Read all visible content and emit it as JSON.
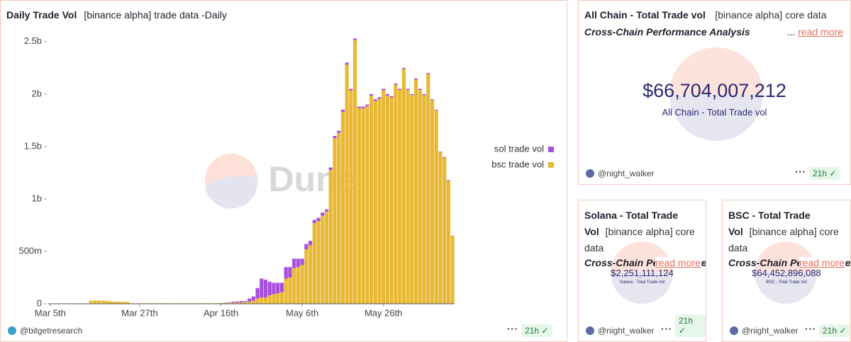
{
  "chart_data": {
    "type": "bar",
    "stacked": true,
    "title": "Daily Trade Vol",
    "subtitle": "[binance alpha] trade data -Daily",
    "watermark": "Dune",
    "categories": [
      "Mar 5th",
      null,
      null,
      null,
      null,
      null,
      null,
      null,
      null,
      null,
      null,
      null,
      null,
      null,
      null,
      null,
      null,
      null,
      null,
      null,
      null,
      null,
      "Mar 27th",
      null,
      null,
      null,
      null,
      null,
      null,
      null,
      null,
      null,
      null,
      null,
      null,
      null,
      null,
      null,
      null,
      null,
      null,
      null,
      "Apr 16th",
      null,
      null,
      null,
      null,
      null,
      null,
      null,
      null,
      null,
      null,
      null,
      null,
      null,
      null,
      null,
      null,
      null,
      null,
      null,
      "May 6th",
      null,
      null,
      null,
      null,
      null,
      null,
      null,
      null,
      null,
      null,
      null,
      null,
      null,
      null,
      null,
      null,
      null,
      null,
      null,
      "May 26th",
      null,
      null,
      null,
      null,
      null,
      null,
      null,
      null,
      null,
      null,
      null,
      null,
      null,
      null,
      null,
      null,
      null
    ],
    "series": [
      {
        "name": "sol trade vol",
        "color": "#a64ee0",
        "values": [
          0,
          0,
          0,
          0,
          0,
          0,
          0,
          0,
          0,
          0,
          0,
          0,
          0,
          0,
          0,
          0,
          0,
          0,
          0,
          0,
          0,
          0,
          0,
          0,
          0,
          0,
          0,
          0,
          0,
          0,
          0,
          0,
          0,
          0,
          0,
          0,
          0,
          0,
          0,
          0,
          0,
          0,
          0,
          3000000,
          5000000,
          10000000,
          10000000,
          12000000,
          10000000,
          30000000,
          40000000,
          100000000,
          180000000,
          170000000,
          130000000,
          110000000,
          100000000,
          90000000,
          110000000,
          100000000,
          90000000,
          80000000,
          60000000,
          50000000,
          40000000,
          30000000,
          30000000,
          30000000,
          20000000,
          25000000,
          20000000,
          20000000,
          20000000,
          20000000,
          15000000,
          15000000,
          15000000,
          15000000,
          15000000,
          15000000,
          15000000,
          15000000,
          15000000,
          15000000,
          12000000,
          10000000,
          10000000,
          10000000,
          10000000,
          10000000,
          10000000,
          10000000,
          10000000,
          10000000,
          8000000,
          7000000,
          6000000,
          6000000,
          5000000,
          3000000
        ]
      },
      {
        "name": "bsc trade vol",
        "color": "#e9b934",
        "values": [
          3000000,
          3000000,
          4000000,
          3000000,
          3000000,
          4000000,
          3000000,
          3000000,
          4000000,
          3000000,
          30000000,
          32000000,
          31000000,
          30000000,
          28000000,
          22000000,
          20000000,
          21000000,
          20000000,
          18000000,
          5000000,
          4000000,
          5000000,
          6000000,
          5000000,
          4000000,
          5000000,
          5000000,
          6000000,
          5000000,
          4000000,
          5000000,
          5000000,
          6000000,
          5000000,
          4000000,
          5000000,
          5000000,
          6000000,
          5000000,
          5000000,
          6000000,
          7000000,
          8000000,
          8000000,
          10000000,
          12000000,
          14000000,
          15000000,
          20000000,
          30000000,
          50000000,
          60000000,
          60000000,
          80000000,
          90000000,
          100000000,
          110000000,
          240000000,
          250000000,
          340000000,
          350000000,
          370000000,
          520000000,
          560000000,
          770000000,
          790000000,
          840000000,
          880000000,
          1275000000,
          1580000000,
          1630000000,
          1830000000,
          2280000000,
          2035000000,
          2515000000,
          1865000000,
          1865000000,
          1885000000,
          1985000000,
          1935000000,
          1955000000,
          2035000000,
          1985000000,
          1968000000,
          2090000000,
          2040000000,
          2240000000,
          2040000000,
          1990000000,
          2140000000,
          2040000000,
          1990000000,
          2190000000,
          1942000000,
          1843000000,
          1444000000,
          1394000000,
          1175000000,
          647000000
        ]
      }
    ],
    "ylim": [
      0,
      2600000000
    ],
    "yticks": [
      0,
      {
        "value": 500000000,
        "label": "500m"
      },
      {
        "value": 1000000000,
        "label": "1b"
      },
      {
        "value": 1500000000,
        "label": "1.5b"
      },
      {
        "value": 2000000000,
        "label": "2b"
      },
      {
        "value": 2500000000,
        "label": "2.5b"
      }
    ],
    "grid": false,
    "legend": "right",
    "author": "@bitgetresearch",
    "age": "21h"
  },
  "counters": [
    {
      "title": "All Chain - Total Trade vol",
      "subtitle": "[binance alpha] core data",
      "description": "Cross-Chain Performance Analysis",
      "more": "...",
      "read_more": "read more",
      "value": "$66,704,007,212",
      "label": "All Chain - Total Trade vol",
      "author": "@night_walker",
      "age": "21h"
    },
    {
      "title": "Solana - Total Trade Vol",
      "subtitle": "[binance alpha] core data",
      "description": "Cross-Chain Performance Analysis",
      "read_more": "read more",
      "value": "$2,251,111,124",
      "label": "Solana - Total Trade Vol",
      "author": "@night_walker",
      "age": "21h"
    },
    {
      "title": "BSC - Total Trade Vol",
      "subtitle": "[binance alpha] core data",
      "description": "Cross-Chain Performance Analysis",
      "read_more": "read more",
      "value": "$64,452,896,088",
      "label": "BSC - Total Trade Vol",
      "author": "@night_walker",
      "age": "21h"
    }
  ]
}
